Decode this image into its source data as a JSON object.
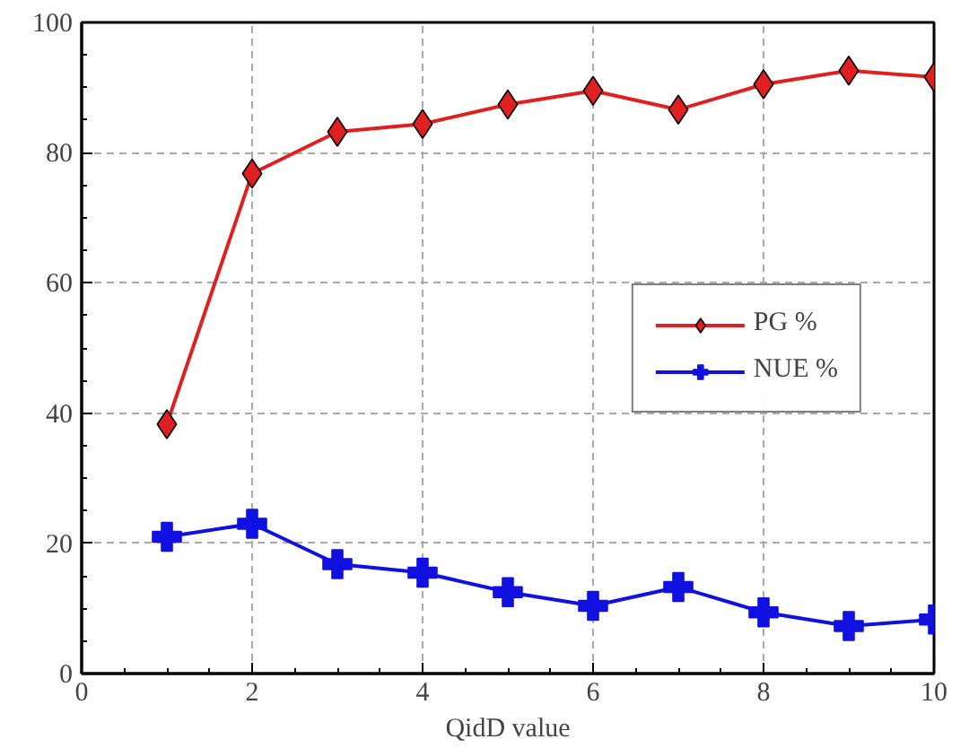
{
  "chart_data": {
    "type": "line",
    "xlabel": "QidD value",
    "x": [
      1,
      2,
      3,
      4,
      5,
      6,
      7,
      8,
      9,
      10
    ],
    "series": [
      {
        "name": "PG %",
        "color": "#e02020",
        "marker": "diamond",
        "values": [
          38.3,
          76.8,
          83.2,
          84.4,
          87.4,
          89.5,
          86.6,
          90.5,
          92.6,
          91.6
        ]
      },
      {
        "name": "NUE %",
        "color": "#1010e0",
        "marker": "cross",
        "values": [
          21.0,
          23.0,
          16.8,
          15.5,
          12.5,
          10.4,
          13.3,
          9.4,
          7.3,
          8.3
        ]
      }
    ],
    "xlim": [
      0,
      10
    ],
    "xticks": [
      0,
      2,
      4,
      6,
      8,
      10
    ],
    "ylim": [
      0,
      100
    ],
    "yticks": [
      0,
      20,
      40,
      60,
      80,
      100
    ],
    "grid": true,
    "legend": "right",
    "line_style": "solid"
  }
}
